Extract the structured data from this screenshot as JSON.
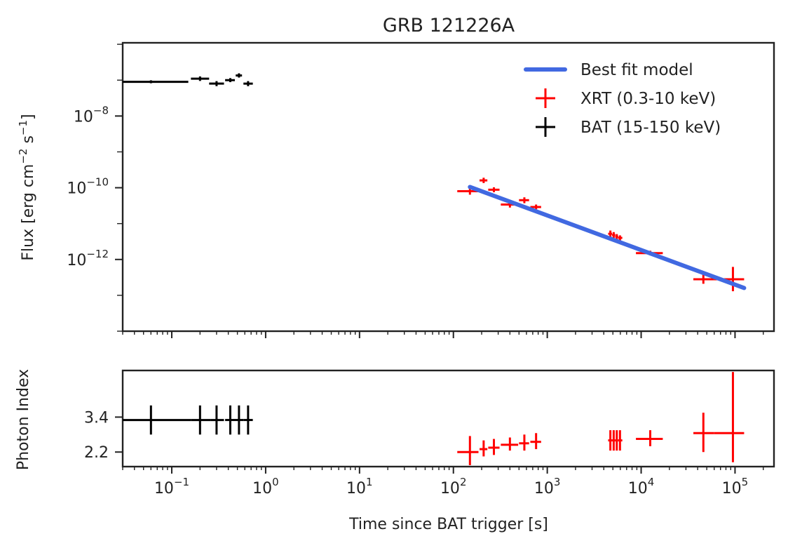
{
  "chart_data": {
    "type": "scatter",
    "title": "GRB 121226A",
    "xlabel": "Time since BAT trigger [s]",
    "x_scale": "log",
    "xlim": [
      0.03,
      260000
    ],
    "x_ticks": [
      {
        "base": "10",
        "exp": "−1",
        "value": 0.1
      },
      {
        "base": "10",
        "exp": "0",
        "value": 1
      },
      {
        "base": "10",
        "exp": "1",
        "value": 10
      },
      {
        "base": "10",
        "exp": "2",
        "value": 100
      },
      {
        "base": "10",
        "exp": "3",
        "value": 1000
      },
      {
        "base": "10",
        "exp": "4",
        "value": 10000
      },
      {
        "base": "10",
        "exp": "5",
        "value": 100000
      }
    ],
    "panels": {
      "flux": {
        "ylabel": {
          "prefix": "Flux [erg cm",
          "sup1": "−2",
          "mid": " s",
          "sup2": "−1",
          "suffix": "]"
        },
        "y_scale": "log",
        "ylim": [
          1e-14,
          1.1e-06
        ],
        "y_ticks": [
          {
            "base": "10",
            "exp": "−8",
            "value": 1e-08
          },
          {
            "base": "10",
            "exp": "−10",
            "value": 1e-10
          },
          {
            "base": "10",
            "exp": "−12",
            "value": 1e-12
          }
        ]
      },
      "index": {
        "ylabel": "Photon Index",
        "ylim": [
          1.7,
          5.0
        ],
        "y_ticks": [
          {
            "label": "3.4",
            "value": 3.4
          },
          {
            "label": "2.2",
            "value": 2.2
          }
        ]
      }
    },
    "legend": {
      "placement": "top-right",
      "entries": [
        {
          "label": "Best fit model",
          "color": "#4169e1",
          "kind": "line"
        },
        {
          "label": "XRT (0.3-10 keV)",
          "color": "#ff0000",
          "kind": "cross"
        },
        {
          "label": "BAT (15-150 keV)",
          "color": "#000000",
          "kind": "cross"
        }
      ]
    },
    "model": {
      "color": "#4169e1",
      "x": [
        150,
        125000
      ],
      "y": [
        1.05e-10,
        1.6e-13
      ]
    },
    "series": [
      {
        "name": "BAT (15-150 keV)",
        "color": "#000000",
        "flux": [
          {
            "x": 0.06,
            "x_lo": 0.03,
            "x_hi": 0.15,
            "y": 9e-08,
            "y_lo": 8.2e-08,
            "y_hi": 9.9e-08
          },
          {
            "x": 0.2,
            "x_lo": 0.16,
            "x_hi": 0.25,
            "y": 1.1e-07,
            "y_lo": 9.5e-08,
            "y_hi": 1.27e-07
          },
          {
            "x": 0.3,
            "x_lo": 0.25,
            "x_hi": 0.36,
            "y": 8e-08,
            "y_lo": 6.8e-08,
            "y_hi": 9.4e-08
          },
          {
            "x": 0.42,
            "x_lo": 0.37,
            "x_hi": 0.47,
            "y": 1e-07,
            "y_lo": 8.8e-08,
            "y_hi": 1.14e-07
          },
          {
            "x": 0.52,
            "x_lo": 0.48,
            "x_hi": 0.56,
            "y": 1.35e-07,
            "y_lo": 1.18e-07,
            "y_hi": 1.55e-07
          },
          {
            "x": 0.65,
            "x_lo": 0.58,
            "x_hi": 0.73,
            "y": 8e-08,
            "y_lo": 6.8e-08,
            "y_hi": 9.4e-08
          }
        ],
        "index": [
          {
            "x": 0.06,
            "x_lo": 0.03,
            "x_hi": 0.16,
            "y": 3.3,
            "y_lo": 2.8,
            "y_hi": 3.8
          },
          {
            "x": 0.2,
            "x_lo": 0.16,
            "x_hi": 0.26,
            "y": 3.3,
            "y_lo": 2.8,
            "y_hi": 3.8
          },
          {
            "x": 0.3,
            "x_lo": 0.26,
            "x_hi": 0.36,
            "y": 3.3,
            "y_lo": 2.8,
            "y_hi": 3.8
          },
          {
            "x": 0.42,
            "x_lo": 0.37,
            "x_hi": 0.47,
            "y": 3.3,
            "y_lo": 2.8,
            "y_hi": 3.8
          },
          {
            "x": 0.52,
            "x_lo": 0.47,
            "x_hi": 0.58,
            "y": 3.3,
            "y_lo": 2.8,
            "y_hi": 3.8
          },
          {
            "x": 0.65,
            "x_lo": 0.58,
            "x_hi": 0.73,
            "y": 3.3,
            "y_lo": 2.8,
            "y_hi": 3.8
          }
        ]
      },
      {
        "name": "XRT (0.3-10 keV)",
        "color": "#ff0000",
        "flux": [
          {
            "x": 150,
            "x_lo": 110,
            "x_hi": 185,
            "y": 8e-11,
            "y_lo": 6.4e-11,
            "y_hi": 9.8e-11
          },
          {
            "x": 210,
            "x_lo": 190,
            "x_hi": 230,
            "y": 1.6e-10,
            "y_lo": 1.35e-10,
            "y_hi": 1.9e-10
          },
          {
            "x": 270,
            "x_lo": 235,
            "x_hi": 310,
            "y": 8.8e-11,
            "y_lo": 7.5e-11,
            "y_hi": 1.03e-10
          },
          {
            "x": 400,
            "x_lo": 320,
            "x_hi": 490,
            "y": 3.4e-11,
            "y_lo": 2.8e-11,
            "y_hi": 4.1e-11
          },
          {
            "x": 570,
            "x_lo": 500,
            "x_hi": 640,
            "y": 4.5e-11,
            "y_lo": 3.7e-11,
            "y_hi": 5.4e-11
          },
          {
            "x": 760,
            "x_lo": 660,
            "x_hi": 860,
            "y": 2.9e-11,
            "y_lo": 2.5e-11,
            "y_hi": 3.4e-11
          },
          {
            "x": 4700,
            "x_lo": 4450,
            "x_hi": 4900,
            "y": 5.2e-12,
            "y_lo": 4.2e-12,
            "y_hi": 6.4e-12
          },
          {
            "x": 5100,
            "x_lo": 4900,
            "x_hi": 5300,
            "y": 4.8e-12,
            "y_lo": 4e-12,
            "y_hi": 5.8e-12
          },
          {
            "x": 5500,
            "x_lo": 5300,
            "x_hi": 5700,
            "y": 4.3e-12,
            "y_lo": 3.6e-12,
            "y_hi": 5.1e-12
          },
          {
            "x": 5950,
            "x_lo": 5700,
            "x_hi": 6300,
            "y": 4e-12,
            "y_lo": 3.4e-12,
            "y_hi": 4.7e-12
          },
          {
            "x": 12500,
            "x_lo": 8800,
            "x_hi": 17000,
            "y": 1.5e-12,
            "y_lo": 1.3e-12,
            "y_hi": 1.75e-12
          },
          {
            "x": 46000,
            "x_lo": 36000,
            "x_hi": 60000,
            "y": 2.8e-13,
            "y_lo": 2.1e-13,
            "y_hi": 3.8e-13
          },
          {
            "x": 95000,
            "x_lo": 60000,
            "x_hi": 125000,
            "y": 2.8e-13,
            "y_lo": 1.3e-13,
            "y_hi": 6.2e-13
          }
        ],
        "index": [
          {
            "x": 150,
            "x_lo": 110,
            "x_hi": 185,
            "y": 2.2,
            "y_lo": 1.75,
            "y_hi": 2.75
          },
          {
            "x": 210,
            "x_lo": 190,
            "x_hi": 230,
            "y": 2.3,
            "y_lo": 2.05,
            "y_hi": 2.6
          },
          {
            "x": 270,
            "x_lo": 235,
            "x_hi": 310,
            "y": 2.35,
            "y_lo": 2.1,
            "y_hi": 2.65
          },
          {
            "x": 400,
            "x_lo": 320,
            "x_hi": 490,
            "y": 2.45,
            "y_lo": 2.25,
            "y_hi": 2.7
          },
          {
            "x": 570,
            "x_lo": 500,
            "x_hi": 640,
            "y": 2.5,
            "y_lo": 2.25,
            "y_hi": 2.8
          },
          {
            "x": 760,
            "x_lo": 660,
            "x_hi": 860,
            "y": 2.55,
            "y_lo": 2.3,
            "y_hi": 2.85
          },
          {
            "x": 4700,
            "x_lo": 4450,
            "x_hi": 4900,
            "y": 2.6,
            "y_lo": 2.25,
            "y_hi": 2.95
          },
          {
            "x": 5100,
            "x_lo": 4900,
            "x_hi": 5300,
            "y": 2.6,
            "y_lo": 2.25,
            "y_hi": 2.95
          },
          {
            "x": 5500,
            "x_lo": 5300,
            "x_hi": 5700,
            "y": 2.6,
            "y_lo": 2.25,
            "y_hi": 2.95
          },
          {
            "x": 5950,
            "x_lo": 5700,
            "x_hi": 6300,
            "y": 2.6,
            "y_lo": 2.25,
            "y_hi": 2.95
          },
          {
            "x": 12500,
            "x_lo": 8800,
            "x_hi": 17000,
            "y": 2.65,
            "y_lo": 2.4,
            "y_hi": 2.95
          },
          {
            "x": 46000,
            "x_lo": 36000,
            "x_hi": 60000,
            "y": 2.85,
            "y_lo": 2.2,
            "y_hi": 3.55
          },
          {
            "x": 95000,
            "x_lo": 60000,
            "x_hi": 125000,
            "y": 2.85,
            "y_lo": 1.85,
            "y_hi": 4.95
          }
        ]
      }
    ]
  }
}
